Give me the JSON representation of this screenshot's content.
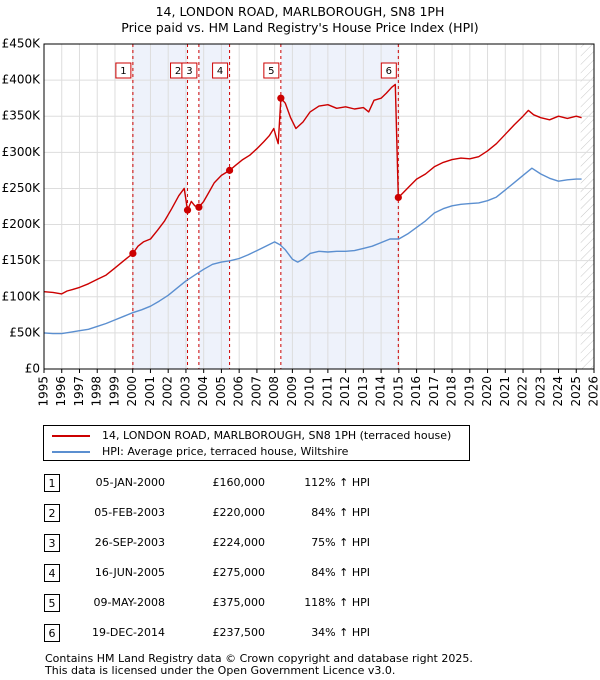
{
  "chart_data": {
    "type": "line",
    "title": "14, LONDON ROAD, MARLBOROUGH, SN8 1PH",
    "subtitle": "Price paid vs. HM Land Registry's House Price Index (HPI)",
    "xlim": [
      1995,
      2026
    ],
    "ylim": [
      0,
      450000
    ],
    "x_ticks": [
      "1995",
      "1996",
      "1997",
      "1998",
      "1999",
      "2000",
      "2001",
      "2002",
      "2003",
      "2004",
      "2005",
      "2006",
      "2007",
      "2008",
      "2009",
      "2010",
      "2011",
      "2012",
      "2013",
      "2014",
      "2015",
      "2016",
      "2017",
      "2018",
      "2019",
      "2020",
      "2021",
      "2022",
      "2023",
      "2024",
      "2025",
      "2026"
    ],
    "y_ticks": [
      {
        "value": 0,
        "label": "£0"
      },
      {
        "value": 50000,
        "label": "£50K"
      },
      {
        "value": 100000,
        "label": "£100K"
      },
      {
        "value": 150000,
        "label": "£150K"
      },
      {
        "value": 200000,
        "label": "£200K"
      },
      {
        "value": 250000,
        "label": "£250K"
      },
      {
        "value": 300000,
        "label": "£300K"
      },
      {
        "value": 350000,
        "label": "£350K"
      },
      {
        "value": 400000,
        "label": "£400K"
      },
      {
        "value": 450000,
        "label": "£450K"
      }
    ],
    "shaded_ranges": [
      [
        2000.01,
        2003.09
      ],
      [
        2003.73,
        2005.46
      ],
      [
        2008.35,
        2014.97
      ]
    ],
    "future_hatch_from": 2025.25,
    "series": [
      {
        "name": "14, LONDON ROAD, MARLBOROUGH, SN8 1PH (terraced house)",
        "color": "#cc0000",
        "x": [
          1995,
          1995.5,
          1996,
          1996.3,
          1996.6,
          1997,
          1997.5,
          1998,
          1998.5,
          1999,
          1999.5,
          2000.01,
          2000.3,
          2000.6,
          2001,
          2001.4,
          2001.8,
          2002.2,
          2002.6,
          2002.9,
          2003.09,
          2003.3,
          2003.5,
          2003.73,
          2004,
          2004.3,
          2004.6,
          2005,
          2005.46,
          2005.8,
          2006.2,
          2006.6,
          2007,
          2007.4,
          2007.7,
          2007.95,
          2008.1,
          2008.2,
          2008.35,
          2008.6,
          2008.9,
          2009.2,
          2009.6,
          2010,
          2010.5,
          2011,
          2011.5,
          2012,
          2012.5,
          2013,
          2013.3,
          2013.6,
          2014,
          2014.3,
          2014.6,
          2014.8,
          2014.97,
          2015.2,
          2015.6,
          2016,
          2016.5,
          2017,
          2017.5,
          2018,
          2018.5,
          2019,
          2019.5,
          2020,
          2020.5,
          2021,
          2021.5,
          2022,
          2022.3,
          2022.6,
          2023,
          2023.5,
          2024,
          2024.5,
          2025,
          2025.3
        ],
        "values": [
          107000,
          106000,
          104000,
          108000,
          110000,
          113000,
          118000,
          124000,
          130000,
          140000,
          150000,
          160000,
          170000,
          176000,
          180000,
          192000,
          205000,
          222000,
          240000,
          250000,
          220000,
          232000,
          226000,
          224000,
          232000,
          245000,
          258000,
          268000,
          275000,
          282000,
          290000,
          296000,
          305000,
          315000,
          323000,
          333000,
          320000,
          312000,
          375000,
          368000,
          348000,
          333000,
          342000,
          356000,
          364000,
          366000,
          361000,
          363000,
          360000,
          362000,
          356000,
          372000,
          375000,
          382000,
          390000,
          394000,
          237500,
          243000,
          253000,
          263000,
          270000,
          280000,
          286000,
          290000,
          292000,
          291000,
          294000,
          302000,
          312000,
          325000,
          338000,
          350000,
          358000,
          352000,
          348000,
          345000,
          350000,
          347000,
          350000,
          348000
        ]
      },
      {
        "name": "HPI: Average price, terraced house, Wiltshire",
        "color": "#5b8fd0",
        "x": [
          1995,
          1995.5,
          1996,
          1996.5,
          1997,
          1997.5,
          1998,
          1998.5,
          1999,
          1999.5,
          2000,
          2000.5,
          2001,
          2001.5,
          2002,
          2002.5,
          2003,
          2003.5,
          2004,
          2004.5,
          2005,
          2005.5,
          2006,
          2006.5,
          2007,
          2007.5,
          2008,
          2008.3,
          2008.6,
          2009,
          2009.3,
          2009.6,
          2010,
          2010.5,
          2011,
          2011.5,
          2012,
          2012.5,
          2013,
          2013.5,
          2014,
          2014.5,
          2015,
          2015.5,
          2016,
          2016.5,
          2017,
          2017.5,
          2018,
          2018.5,
          2019,
          2019.5,
          2020,
          2020.5,
          2021,
          2021.5,
          2022,
          2022.5,
          2023,
          2023.5,
          2024,
          2024.5,
          2025,
          2025.3
        ],
        "values": [
          50000,
          49000,
          49000,
          51000,
          53000,
          55000,
          59000,
          63000,
          68000,
          73000,
          78000,
          82000,
          87000,
          94000,
          102000,
          112000,
          122000,
          130000,
          138000,
          145000,
          148000,
          150000,
          153000,
          158000,
          164000,
          170000,
          176000,
          172000,
          165000,
          152000,
          148000,
          152000,
          160000,
          163000,
          162000,
          163000,
          163000,
          164000,
          167000,
          170000,
          175000,
          180000,
          180000,
          187000,
          196000,
          205000,
          216000,
          222000,
          226000,
          228000,
          229000,
          230000,
          233000,
          238000,
          248000,
          258000,
          268000,
          278000,
          270000,
          264000,
          260000,
          262000,
          263000,
          263000
        ]
      }
    ],
    "sales": [
      {
        "label": "1",
        "x": 2000.01,
        "value": 160000
      },
      {
        "label": "2",
        "x": 2003.09,
        "value": 220000
      },
      {
        "label": "3",
        "x": 2003.73,
        "value": 224000
      },
      {
        "label": "4",
        "x": 2005.46,
        "value": 275000
      },
      {
        "label": "5",
        "x": 2008.35,
        "value": 375000
      },
      {
        "label": "6",
        "x": 2014.97,
        "value": 237500
      }
    ]
  },
  "legend": {
    "red": "14, LONDON ROAD, MARLBOROUGH, SN8 1PH (terraced house)",
    "blue": "HPI: Average price, terraced house, Wiltshire",
    "red_color": "#cc0000",
    "blue_color": "#5b8fd0"
  },
  "table": [
    {
      "num": "1",
      "date": "05-JAN-2000",
      "price": "£160,000",
      "hpi": "112% ↑ HPI"
    },
    {
      "num": "2",
      "date": "05-FEB-2003",
      "price": "£220,000",
      "hpi": "84% ↑ HPI"
    },
    {
      "num": "3",
      "date": "26-SEP-2003",
      "price": "£224,000",
      "hpi": "75% ↑ HPI"
    },
    {
      "num": "4",
      "date": "16-JUN-2005",
      "price": "£275,000",
      "hpi": "84% ↑ HPI"
    },
    {
      "num": "5",
      "date": "09-MAY-2008",
      "price": "£375,000",
      "hpi": "118% ↑ HPI"
    },
    {
      "num": "6",
      "date": "19-DEC-2014",
      "price": "£237,500",
      "hpi": "34% ↑ HPI"
    }
  ],
  "footer": {
    "line1": "Contains HM Land Registry data © Crown copyright and database right 2025.",
    "line2": "This data is licensed under the Open Government Licence v3.0."
  }
}
